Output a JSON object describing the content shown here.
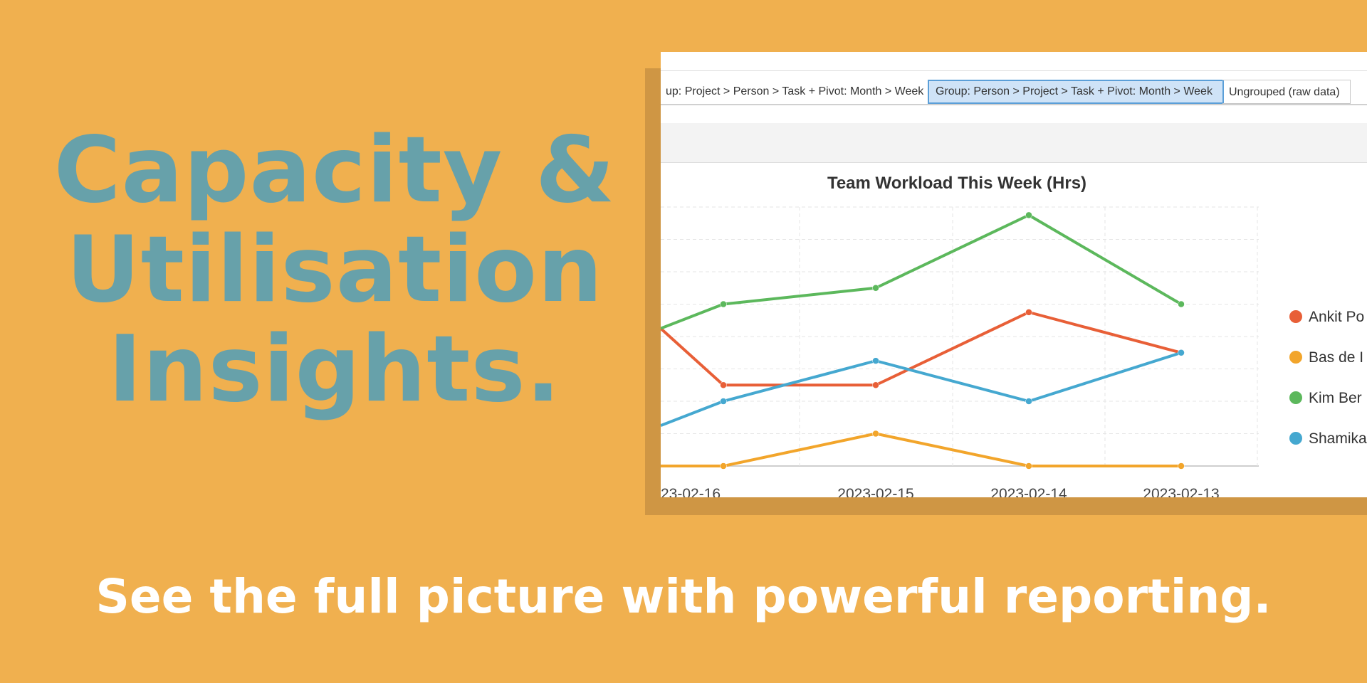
{
  "headline": {
    "line1": "Capacity &",
    "line2": "Utilisation",
    "line3": "Insights."
  },
  "tagline": "See the full picture with powerful reporting.",
  "tabs": [
    {
      "label": "up: Project > Person > Task + Pivot: Month > Week",
      "active": false
    },
    {
      "label": "Group: Person > Project > Task + Pivot: Month > Week",
      "active": true
    },
    {
      "label": "Ungrouped (raw data)",
      "active": false
    }
  ],
  "colors": {
    "background": "#f0b04f",
    "headline": "#67a1aa",
    "tagline": "#ffffff",
    "active_tab_fill": "#cfe3f7",
    "active_tab_border": "#5b9fd8"
  },
  "chart_data": {
    "type": "line",
    "title": "Team Workload This Week (Hrs)",
    "categories": [
      "23-02-16",
      "2023-02-15",
      "2023-02-14",
      "2023-02-13"
    ],
    "grid": true,
    "legend_position": "right",
    "series": [
      {
        "name": "Ankit Po",
        "color": "#e85f37",
        "values": [
          5,
          5,
          9.5,
          7
        ]
      },
      {
        "name": "Bas de I",
        "color": "#f2a52b",
        "values": [
          0,
          2,
          0,
          0
        ]
      },
      {
        "name": "Kim Ber",
        "color": "#5cb85c",
        "values": [
          10,
          11,
          15.5,
          10
        ]
      },
      {
        "name": "Shamika",
        "color": "#45a8d0",
        "values": [
          4,
          6.5,
          4,
          7
        ]
      }
    ],
    "left_edge_values": [
      8.5,
      0,
      8.5,
      2.5
    ]
  }
}
